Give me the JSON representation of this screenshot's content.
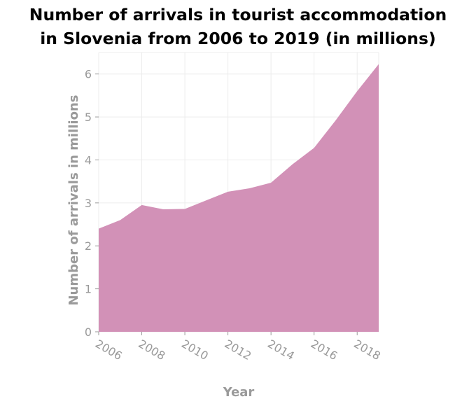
{
  "title_line1": "Number of arrivals in tourist accommodation",
  "title_line2": "in Slovenia from 2006 to 2019 (in millions)",
  "chart_data": {
    "type": "area",
    "title": "Number of arrivals in tourist accommodation in Slovenia from 2006 to 2019 (in millions)",
    "xlabel": "Year",
    "ylabel": "Number of arrivals in millions",
    "x": [
      2006,
      2007,
      2008,
      2009,
      2010,
      2011,
      2012,
      2013,
      2014,
      2015,
      2016,
      2017,
      2018,
      2019
    ],
    "series": [
      {
        "values": [
          2.4,
          2.6,
          2.95,
          2.85,
          2.86,
          3.06,
          3.26,
          3.34,
          3.47,
          3.9,
          4.28,
          4.92,
          5.6,
          6.23
        ]
      }
    ],
    "xlim": [
      2006,
      2019
    ],
    "ylim": [
      0,
      6.5
    ],
    "xticks": [
      "2006",
      "2008",
      "2010",
      "2012",
      "2014",
      "2016",
      "2018"
    ],
    "yticks": [
      "0",
      "1",
      "2",
      "3",
      "4",
      "5",
      "6"
    ],
    "grid": true,
    "fill_color": "#d291b7",
    "grid_color": "#ececec",
    "background_color": "#ffffff"
  }
}
